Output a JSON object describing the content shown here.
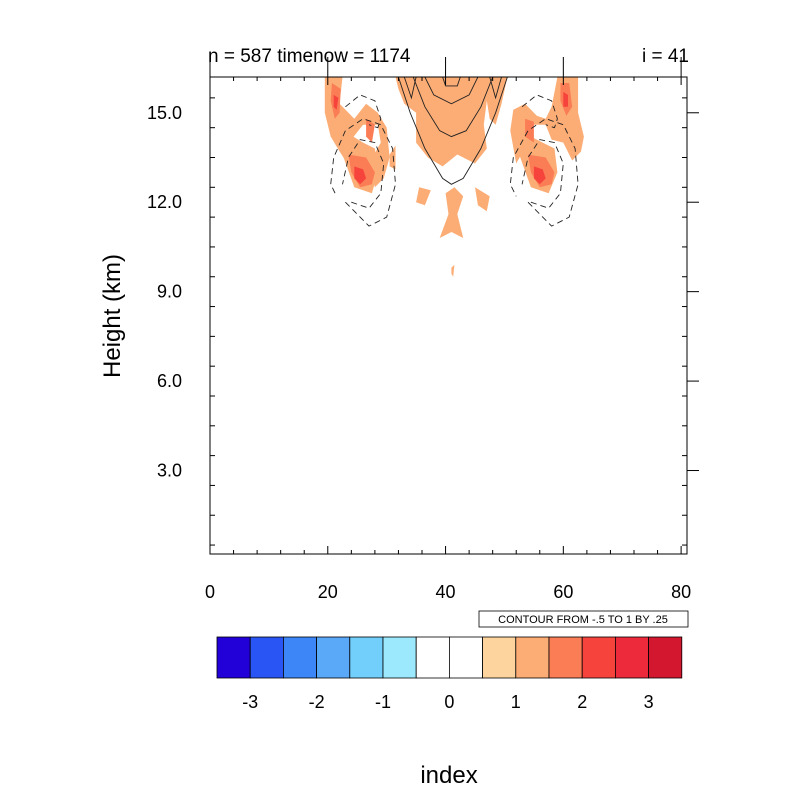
{
  "chart_data": {
    "type": "heatmap",
    "title_left": "n = 587 timenow = 1174",
    "title_right": "i = 41",
    "xlabel": "index",
    "ylabel": "Height (km)",
    "xlim": [
      0,
      81
    ],
    "ylim": [
      0.2,
      16.2
    ],
    "x_ticks": [
      0,
      20,
      40,
      60,
      80
    ],
    "x_tick_labels": [
      "0",
      "20",
      "40",
      "60",
      "80"
    ],
    "y_ticks": [
      3.0,
      6.0,
      9.0,
      12.0,
      15.0
    ],
    "y_tick_labels": [
      "3.0",
      "6.0",
      "9.0",
      "12.0",
      "15.0"
    ],
    "contour_info": "CONTOUR FROM -.5 TO 1 BY .25",
    "colorbar": {
      "colors": [
        "#2200d8",
        "#2a55f5",
        "#3d86f7",
        "#5aa8f8",
        "#72cefa",
        "#9ce8fc",
        "#ffffff",
        "#ffffff",
        "#fdd49e",
        "#fcad75",
        "#fb7d56",
        "#f6443c",
        "#ec2a3c",
        "#d3172f"
      ],
      "tick_labels": [
        "-3",
        "-2",
        "-1",
        "0",
        "1",
        "2",
        "3"
      ],
      "tick_values": [
        -3,
        -2,
        -1,
        0,
        1,
        2,
        3
      ]
    },
    "filled_regions": [
      {
        "level": 1,
        "x": [
          20.5,
          22.5,
          22.0,
          24.5,
          26.5,
          28.5,
          30.0,
          30.5,
          29.5,
          28.0,
          27.0,
          29.0,
          28.5,
          26.0,
          24.0,
          23.0,
          22.0,
          20.5,
          19.5,
          19.5
        ],
        "y": [
          16.2,
          16.2,
          15.3,
          14.8,
          15.3,
          15.0,
          14.5,
          13.5,
          12.8,
          12.5,
          13.3,
          14.0,
          14.6,
          14.6,
          14.1,
          13.4,
          13.7,
          14.2,
          15.0,
          16.2
        ]
      },
      {
        "level": 1,
        "x": [
          22.5,
          24.5,
          27.5,
          28.5,
          28.0,
          26.0,
          23.5,
          22.0
        ],
        "y": [
          13.6,
          12.5,
          12.3,
          13.0,
          13.8,
          14.0,
          14.3,
          14.1
        ]
      },
      {
        "level": 1,
        "x": [
          31.5,
          50.5,
          49.5,
          48.5,
          47.5,
          47.0,
          46.5,
          47.0,
          45.0,
          42.0,
          39.5,
          37.0,
          35.0,
          35.0,
          33.0,
          32.0
        ],
        "y": [
          16.2,
          16.2,
          15.3,
          14.6,
          14.8,
          15.4,
          14.6,
          13.8,
          13.3,
          13.6,
          13.2,
          13.5,
          14.0,
          15.0,
          15.3,
          15.8
        ]
      },
      {
        "level": 1,
        "x": [
          30.5,
          31.5,
          31.5,
          30.5
        ],
        "y": [
          13.6,
          13.9,
          13.1,
          13.2
        ]
      },
      {
        "level": 1,
        "x": [
          35.5,
          37.5,
          36.5,
          35.0
        ],
        "y": [
          12.5,
          12.4,
          11.9,
          12.0
        ]
      },
      {
        "level": 1,
        "x": [
          40.0,
          41.5,
          43.0,
          42.0,
          43.0,
          41.0,
          39.0,
          40.5
        ],
        "y": [
          12.3,
          12.5,
          12.2,
          11.6,
          10.8,
          11.0,
          10.8,
          11.6
        ]
      },
      {
        "level": 1,
        "x": [
          45.0,
          47.5,
          47.0,
          45.5
        ],
        "y": [
          12.5,
          12.2,
          11.7,
          11.9
        ]
      },
      {
        "level": 1,
        "x": [
          41.0,
          41.5,
          41.3,
          41.0
        ],
        "y": [
          9.8,
          9.9,
          9.5,
          9.6
        ]
      },
      {
        "level": 1,
        "x": [
          58.5,
          62.5,
          62.5,
          63.5,
          63.0,
          61.5,
          60.0,
          58.0,
          57.0,
          55.0,
          54.0,
          52.0,
          51.0,
          51.5,
          53.5,
          55.5,
          57.0,
          58.0,
          58.5,
          59.0
        ],
        "y": [
          16.2,
          16.2,
          15.0,
          14.2,
          13.7,
          13.4,
          14.0,
          14.1,
          14.6,
          14.6,
          14.0,
          13.3,
          14.4,
          15.1,
          15.3,
          14.9,
          14.8,
          15.2,
          15.7,
          16.2
        ]
      },
      {
        "level": 1,
        "x": [
          52.5,
          54.5,
          57.5,
          59.0,
          58.5,
          56.5,
          53.5,
          52.0
        ],
        "y": [
          13.6,
          12.5,
          12.3,
          13.0,
          13.8,
          14.0,
          14.3,
          14.1
        ]
      },
      {
        "level": 1.5,
        "x": [
          20.7,
          22.2,
          22.0,
          21.2,
          20.5
        ],
        "y": [
          16.0,
          15.8,
          15.0,
          14.8,
          15.4
        ]
      },
      {
        "level": 1.5,
        "x": [
          23.5,
          26.5,
          28.0,
          27.5,
          25.5,
          24.0
        ],
        "y": [
          13.6,
          13.5,
          13.0,
          12.6,
          12.5,
          13.0
        ]
      },
      {
        "level": 1.5,
        "x": [
          26.5,
          28.0,
          27.5,
          26.5
        ],
        "y": [
          14.8,
          14.6,
          14.0,
          14.2
        ]
      },
      {
        "level": 1.5,
        "x": [
          54.0,
          57.0,
          58.5,
          58.0,
          56.0,
          54.5
        ],
        "y": [
          13.6,
          13.5,
          13.0,
          12.6,
          12.5,
          13.0
        ]
      },
      {
        "level": 1.5,
        "x": [
          53.5,
          55.0,
          55.0,
          53.5
        ],
        "y": [
          14.8,
          14.7,
          14.0,
          14.2
        ]
      },
      {
        "level": 1.5,
        "x": [
          59.5,
          61.0,
          61.5,
          60.5,
          59.5
        ],
        "y": [
          16.0,
          16.0,
          15.2,
          14.9,
          15.4
        ]
      },
      {
        "level": 2,
        "x": [
          21.0,
          21.8,
          21.5,
          21.0
        ],
        "y": [
          15.6,
          15.5,
          15.1,
          15.2
        ]
      },
      {
        "level": 2,
        "x": [
          24.5,
          26.0,
          26.5,
          25.5,
          24.5
        ],
        "y": [
          13.2,
          13.1,
          12.8,
          12.6,
          12.8
        ]
      },
      {
        "level": 2,
        "x": [
          55.0,
          56.5,
          57.0,
          56.0,
          55.0
        ],
        "y": [
          13.2,
          13.1,
          12.8,
          12.6,
          12.8
        ]
      },
      {
        "level": 2,
        "x": [
          60.0,
          60.8,
          60.8,
          60.0
        ],
        "y": [
          15.7,
          15.6,
          15.2,
          15.2
        ]
      }
    ],
    "contour_lines": [
      {
        "style": "dashed",
        "x": [
          23.0,
          27.0,
          30.0,
          31.5,
          31.0,
          29.0,
          26.0,
          23.0,
          21.0,
          20.5,
          21.5
        ],
        "y": [
          12.0,
          11.2,
          11.5,
          12.6,
          13.8,
          14.6,
          14.8,
          14.4,
          13.5,
          12.6,
          12.2
        ]
      },
      {
        "style": "dashed",
        "x": [
          24.0,
          27.0,
          29.0,
          29.5,
          28.0,
          25.5,
          23.5,
          22.5
        ],
        "y": [
          12.0,
          11.8,
          12.3,
          13.3,
          14.0,
          14.1,
          13.5,
          12.6
        ]
      },
      {
        "style": "dashed",
        "x": [
          23.0,
          25.5,
          28.0,
          29.0,
          28.5,
          27.0
        ],
        "y": [
          15.2,
          15.6,
          15.4,
          14.8,
          14.5,
          14.6
        ]
      },
      {
        "style": "dashed",
        "x": [
          54.0,
          58.0,
          61.0,
          62.5,
          62.0,
          60.0,
          57.0,
          54.0,
          51.5,
          51.0,
          52.0
        ],
        "y": [
          12.0,
          11.2,
          11.5,
          12.6,
          13.8,
          14.6,
          14.8,
          14.4,
          13.5,
          12.6,
          12.2
        ]
      },
      {
        "style": "dashed",
        "x": [
          54.5,
          57.5,
          59.5,
          60.0,
          58.5,
          56.0,
          54.0,
          53.0
        ],
        "y": [
          12.0,
          11.8,
          12.3,
          13.3,
          14.0,
          14.1,
          13.5,
          12.6
        ]
      },
      {
        "style": "dashed",
        "x": [
          53.0,
          55.5,
          58.0,
          59.0,
          58.5,
          57.0
        ],
        "y": [
          15.2,
          15.6,
          15.4,
          14.8,
          14.5,
          14.6
        ]
      },
      {
        "style": "solid",
        "x": [
          32.0,
          34.0,
          36.5,
          39.5,
          41.0,
          43.0,
          46.0,
          48.5,
          50.5
        ],
        "y": [
          16.2,
          15.0,
          13.8,
          12.8,
          12.6,
          12.8,
          13.8,
          15.0,
          16.2
        ]
      },
      {
        "style": "solid",
        "x": [
          34.5,
          36.5,
          39.0,
          41.0,
          43.5,
          46.0,
          48.0
        ],
        "y": [
          16.2,
          15.2,
          14.4,
          14.2,
          14.4,
          15.2,
          16.2
        ]
      },
      {
        "style": "solid",
        "x": [
          36.5,
          38.0,
          41.0,
          44.0,
          45.5
        ],
        "y": [
          16.2,
          15.6,
          15.3,
          15.6,
          16.2
        ]
      },
      {
        "style": "solid",
        "x": [
          39.5,
          40.0,
          41.0,
          42.0,
          42.5
        ],
        "y": [
          16.2,
          15.9,
          15.9,
          15.9,
          16.2
        ]
      },
      {
        "style": "solid",
        "x": [
          33.0,
          34.2,
          35.0
        ],
        "y": [
          16.2,
          15.5,
          16.2
        ]
      },
      {
        "style": "solid",
        "x": [
          47.5,
          48.5,
          49.5
        ],
        "y": [
          16.2,
          15.5,
          16.2
        ]
      }
    ]
  }
}
